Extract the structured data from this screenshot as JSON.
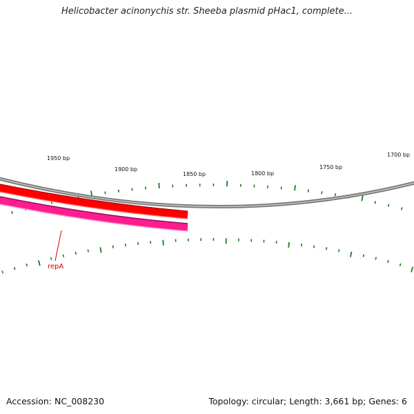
{
  "title": "Helicobacter acinonychis str. Sheeba plasmid pHac1, complete...",
  "footer": {
    "accession": "Accession: NC_008230",
    "summary": "Topology: circular; Length: 3,661 bp; Genes: 6"
  },
  "ruler": {
    "labels": [
      "1950 bp",
      "1900 bp",
      "1850 bp",
      "1800 bp",
      "1750 bp",
      "1700 bp"
    ],
    "tick_color": "#1a7a1a"
  },
  "backbone_color": "#888888",
  "features": [
    {
      "name": "repA",
      "track_colors": [
        "#ff0000",
        "#ff1493"
      ]
    }
  ]
}
